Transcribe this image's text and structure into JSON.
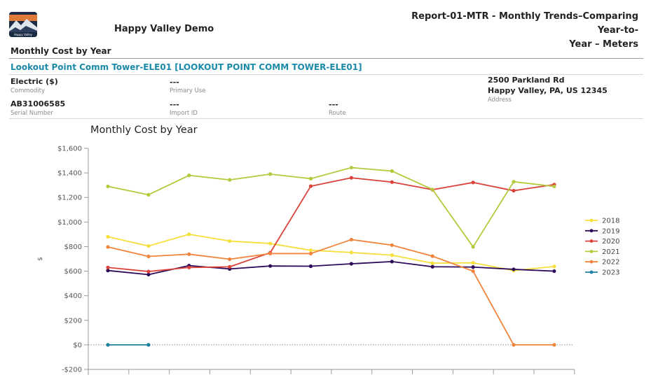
{
  "header": {
    "org_name": "Happy Valley Demo",
    "report_title_line1": "Report-01-MTR - Monthly Trends–Comparing Year-to-",
    "report_title_line2": "Year – Meters",
    "logo_text": "Happy Valley"
  },
  "section_title": "Monthly Cost by Year",
  "meter": {
    "name": "Lookout Point Comm Tower-ELE01 [LOOKOUT POINT COMM TOWER-ELE01]",
    "commodity_value": "Electric  ($)",
    "commodity_label": "Commodity",
    "primary_use_value": "---",
    "primary_use_label": "Primary Use",
    "serial_value": "AB31006585",
    "serial_label": "Serial Number",
    "import_id_value": "---",
    "import_id_label": "Import ID",
    "route_value": "---",
    "route_label": "Route",
    "address_line1": "2500 Parkland Rd",
    "address_line2": "Happy Valley, PA, US 12345",
    "address_label": "Address"
  },
  "chart_data": {
    "type": "line",
    "title": "Monthly Cost by Year",
    "ylabel": "$",
    "ylim": [
      -200,
      1600
    ],
    "yticks": [
      -200,
      0,
      200,
      400,
      600,
      800,
      1000,
      1200,
      1400,
      1600
    ],
    "ytick_labels": [
      "-$200",
      "$0",
      "$200",
      "$400",
      "$600",
      "$800",
      "$1,000",
      "$1,200",
      "$1,400",
      "$1,600"
    ],
    "x_count": 12,
    "legend_position": "right",
    "zero_line": "dotted",
    "series": [
      {
        "name": "2018",
        "color": "#f5df3a",
        "values": [
          880,
          805,
          900,
          845,
          825,
          770,
          752,
          730,
          665,
          668,
          605,
          638
        ]
      },
      {
        "name": "2019",
        "color": "#2e0a5a",
        "values": [
          605,
          572,
          645,
          618,
          642,
          640,
          660,
          678,
          636,
          633,
          615,
          600
        ]
      },
      {
        "name": "2020",
        "color": "#d9433a",
        "values": [
          630,
          597,
          630,
          635,
          750,
          1292,
          1360,
          1325,
          1263,
          1322,
          1255,
          1305
        ]
      },
      {
        "name": "2021",
        "color": "#b5c93c",
        "values": [
          1290,
          1222,
          1380,
          1343,
          1390,
          1353,
          1443,
          1415,
          1265,
          798,
          1328,
          1290
        ]
      },
      {
        "name": "2022",
        "color": "#f0843c",
        "values": [
          797,
          720,
          738,
          697,
          743,
          743,
          857,
          812,
          722,
          600,
          0,
          0
        ]
      },
      {
        "name": "2023",
        "color": "#1f7f9e",
        "values": [
          0,
          0
        ]
      }
    ]
  }
}
